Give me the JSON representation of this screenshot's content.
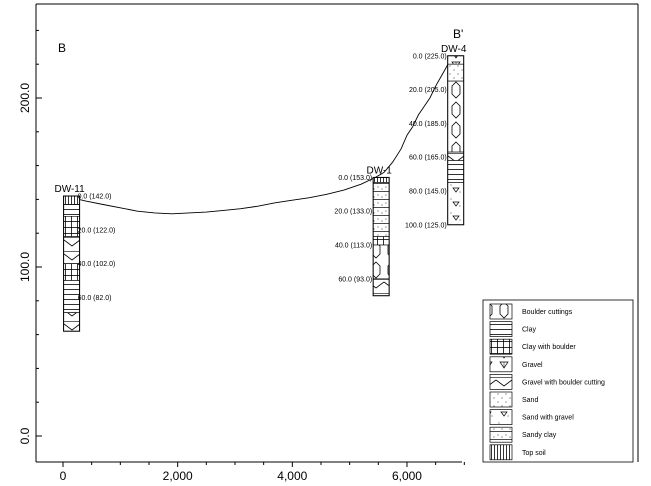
{
  "section": {
    "start_label": "B",
    "end_label": "B'"
  },
  "axes": {
    "x_ticks": [
      "0",
      "2,000",
      "4,000",
      "6,000"
    ],
    "x_values": [
      0,
      2000,
      4000,
      6000
    ],
    "y_ticks": [
      "0.0",
      "100.0",
      "200.0"
    ],
    "y_values": [
      0,
      100,
      200
    ]
  },
  "terrain": [
    [
      0,
      142
    ],
    [
      150,
      141
    ],
    [
      400,
      139
    ],
    [
      700,
      137
    ],
    [
      1000,
      135
    ],
    [
      1300,
      133
    ],
    [
      1600,
      132
    ],
    [
      1900,
      131.5
    ],
    [
      2200,
      132
    ],
    [
      2500,
      132.5
    ],
    [
      2800,
      133.5
    ],
    [
      3100,
      134.5
    ],
    [
      3400,
      136
    ],
    [
      3700,
      138
    ],
    [
      4000,
      139.5
    ],
    [
      4300,
      141
    ],
    [
      4600,
      143
    ],
    [
      4900,
      145.5
    ],
    [
      5200,
      149
    ],
    [
      5450,
      153
    ],
    [
      5600,
      156
    ],
    [
      5750,
      162
    ],
    [
      5900,
      170
    ],
    [
      6000,
      178
    ],
    [
      6100,
      183
    ],
    [
      6200,
      190
    ],
    [
      6300,
      195
    ],
    [
      6400,
      200
    ],
    [
      6500,
      207
    ],
    [
      6600,
      213
    ],
    [
      6700,
      219
    ],
    [
      6800,
      225
    ]
  ],
  "wells": [
    {
      "name": "DW-11",
      "x": 150,
      "top": 142,
      "bottom": 62,
      "layers": [
        {
          "from": 142,
          "to": 137,
          "pattern": "top-soil"
        },
        {
          "from": 137,
          "to": 130,
          "pattern": "clay"
        },
        {
          "from": 130,
          "to": 118,
          "pattern": "clay-with-boulder"
        },
        {
          "from": 118,
          "to": 102,
          "pattern": "gravel-with-boulder-cutting"
        },
        {
          "from": 102,
          "to": 92,
          "pattern": "clay-with-boulder"
        },
        {
          "from": 92,
          "to": 73,
          "pattern": "clay"
        },
        {
          "from": 73,
          "to": 62,
          "pattern": "gravel-with-boulder-cutting"
        }
      ],
      "depths": [
        {
          "label": "0.0 (142.0)",
          "elev": 142
        },
        {
          "label": "20.0 (122.0)",
          "elev": 122
        },
        {
          "label": "40.0 (102.0)",
          "elev": 102
        },
        {
          "label": "60.0 (82.0)",
          "elev": 82
        }
      ]
    },
    {
      "name": "DW-1",
      "x": 5550,
      "top": 153,
      "bottom": 83,
      "layers": [
        {
          "from": 153,
          "to": 150,
          "pattern": "top-soil"
        },
        {
          "from": 150,
          "to": 118,
          "pattern": "sandy-clay"
        },
        {
          "from": 118,
          "to": 113,
          "pattern": "clay-with-boulder"
        },
        {
          "from": 113,
          "to": 93,
          "pattern": "boulder-cuttings"
        },
        {
          "from": 93,
          "to": 83,
          "pattern": "gravel-with-boulder-cutting"
        }
      ],
      "depths": [
        {
          "label": "0.0 (153.0)",
          "elev": 153
        },
        {
          "label": "20.0 (133.0)",
          "elev": 133
        },
        {
          "label": "40.0 (113.0)",
          "elev": 113
        },
        {
          "label": "60.0 (93.0)",
          "elev": 93
        }
      ]
    },
    {
      "name": "DW-4",
      "x": 6850,
      "top": 225,
      "bottom": 125,
      "layers": [
        {
          "from": 225,
          "to": 220,
          "pattern": "gravel"
        },
        {
          "from": 220,
          "to": 210,
          "pattern": "sand"
        },
        {
          "from": 210,
          "to": 168,
          "pattern": "boulder-cuttings"
        },
        {
          "from": 168,
          "to": 163,
          "pattern": "gravel-with-boulder-cutting"
        },
        {
          "from": 163,
          "to": 150,
          "pattern": "clay"
        },
        {
          "from": 150,
          "to": 125,
          "pattern": "sand-with-gravel"
        }
      ],
      "depths": [
        {
          "label": "0.0 (225.0)",
          "elev": 225
        },
        {
          "label": "20.0 (205.0)",
          "elev": 205
        },
        {
          "label": "40.0 (185.0)",
          "elev": 185
        },
        {
          "label": "60.0 (165.0)",
          "elev": 165
        },
        {
          "label": "80.0 (145.0)",
          "elev": 145
        },
        {
          "label": "100.0 (125.0)",
          "elev": 125
        }
      ]
    }
  ],
  "legend": [
    {
      "pattern": "boulder-cuttings",
      "label": "Boulder cuttings"
    },
    {
      "pattern": "clay",
      "label": "Clay"
    },
    {
      "pattern": "clay-with-boulder",
      "label": "Clay with boulder"
    },
    {
      "pattern": "gravel",
      "label": "Gravel"
    },
    {
      "pattern": "gravel-with-boulder-cutting",
      "label": "Gravel with boulder cutting"
    },
    {
      "pattern": "sand",
      "label": "Sand"
    },
    {
      "pattern": "sand-with-gravel",
      "label": "Sand with gravel"
    },
    {
      "pattern": "sandy-clay",
      "label": "Sandy clay"
    },
    {
      "pattern": "top-soil",
      "label": "Top soil"
    }
  ]
}
